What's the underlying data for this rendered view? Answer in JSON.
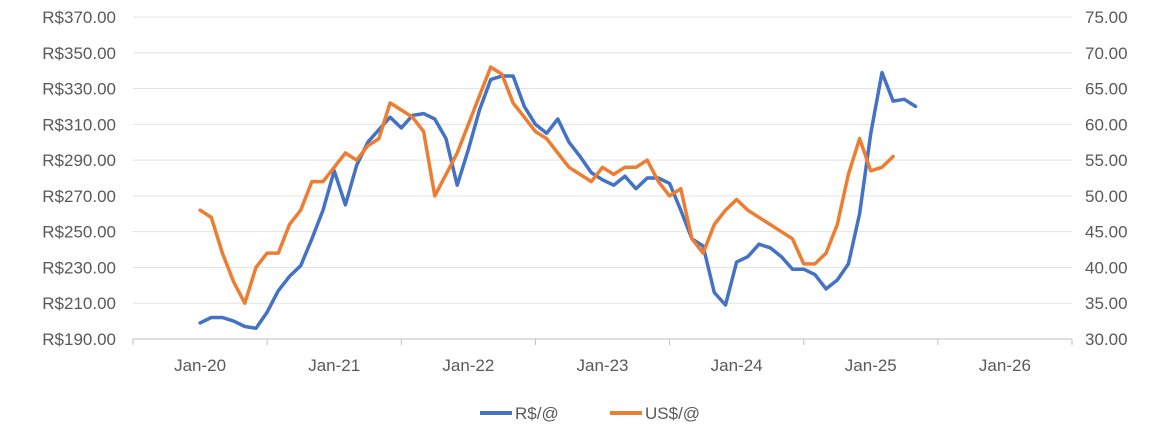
{
  "chart_data": {
    "type": "line",
    "title": "",
    "xlabel": "",
    "ylabel": "",
    "grid": true,
    "legend_position": "bottom",
    "x_range": [
      "2019-07",
      "2026-07"
    ],
    "x_ticks": [
      {
        "date": "2020-01",
        "label": "Jan-20"
      },
      {
        "date": "2021-01",
        "label": "Jan-21"
      },
      {
        "date": "2022-01",
        "label": "Jan-22"
      },
      {
        "date": "2023-01",
        "label": "Jan-23"
      },
      {
        "date": "2024-01",
        "label": "Jan-24"
      },
      {
        "date": "2025-01",
        "label": "Jan-25"
      },
      {
        "date": "2026-01",
        "label": "Jan-26"
      }
    ],
    "y_left": {
      "range": [
        190,
        370
      ],
      "ticks": [
        {
          "value": 190,
          "label": "R$190.00"
        },
        {
          "value": 210,
          "label": "R$210.00"
        },
        {
          "value": 230,
          "label": "R$230.00"
        },
        {
          "value": 250,
          "label": "R$250.00"
        },
        {
          "value": 270,
          "label": "R$270.00"
        },
        {
          "value": 290,
          "label": "R$290.00"
        },
        {
          "value": 310,
          "label": "R$310.00"
        },
        {
          "value": 330,
          "label": "R$330.00"
        },
        {
          "value": 350,
          "label": "R$350.00"
        },
        {
          "value": 370,
          "label": "R$370.00"
        }
      ]
    },
    "y_right": {
      "range": [
        30,
        75
      ],
      "ticks": [
        {
          "value": 30,
          "label": "30.00"
        },
        {
          "value": 35,
          "label": "35.00"
        },
        {
          "value": 40,
          "label": "40.00"
        },
        {
          "value": 45,
          "label": "45.00"
        },
        {
          "value": 50,
          "label": "50.00"
        },
        {
          "value": 55,
          "label": "55.00"
        },
        {
          "value": 60,
          "label": "60.00"
        },
        {
          "value": 65,
          "label": "65.00"
        },
        {
          "value": 70,
          "label": "70.00"
        },
        {
          "value": 75,
          "label": "75.00"
        }
      ]
    },
    "series": [
      {
        "name": "R$/@",
        "axis": "left",
        "color": "#4472C4",
        "points": [
          [
            "2020-01",
            199
          ],
          [
            "2020-02",
            202
          ],
          [
            "2020-03",
            202
          ],
          [
            "2020-04",
            200
          ],
          [
            "2020-05",
            197
          ],
          [
            "2020-06",
            196
          ],
          [
            "2020-07",
            205
          ],
          [
            "2020-08",
            217
          ],
          [
            "2020-09",
            225
          ],
          [
            "2020-10",
            231
          ],
          [
            "2020-11",
            246
          ],
          [
            "2020-12",
            262
          ],
          [
            "2021-01",
            284
          ],
          [
            "2021-02",
            265
          ],
          [
            "2021-03",
            287
          ],
          [
            "2021-04",
            300
          ],
          [
            "2021-05",
            307
          ],
          [
            "2021-06",
            314
          ],
          [
            "2021-07",
            308
          ],
          [
            "2021-08",
            315
          ],
          [
            "2021-09",
            316
          ],
          [
            "2021-10",
            313
          ],
          [
            "2021-11",
            302
          ],
          [
            "2021-12",
            276
          ],
          [
            "2022-01",
            296
          ],
          [
            "2022-02",
            318
          ],
          [
            "2022-03",
            335
          ],
          [
            "2022-04",
            337
          ],
          [
            "2022-05",
            337
          ],
          [
            "2022-06",
            320
          ],
          [
            "2022-07",
            310
          ],
          [
            "2022-08",
            305
          ],
          [
            "2022-09",
            313
          ],
          [
            "2022-10",
            300
          ],
          [
            "2022-11",
            292
          ],
          [
            "2022-12",
            283
          ],
          [
            "2023-01",
            279
          ],
          [
            "2023-02",
            276
          ],
          [
            "2023-03",
            281
          ],
          [
            "2023-04",
            274
          ],
          [
            "2023-05",
            280
          ],
          [
            "2023-06",
            280
          ],
          [
            "2023-07",
            277
          ],
          [
            "2023-08",
            262
          ],
          [
            "2023-09",
            246
          ],
          [
            "2023-10",
            242
          ],
          [
            "2023-11",
            216
          ],
          [
            "2023-12",
            209
          ],
          [
            "2024-01",
            233
          ],
          [
            "2024-02",
            236
          ],
          [
            "2024-03",
            243
          ],
          [
            "2024-04",
            241
          ],
          [
            "2024-05",
            236
          ],
          [
            "2024-06",
            229
          ],
          [
            "2024-07",
            229
          ],
          [
            "2024-08",
            226
          ],
          [
            "2024-09",
            218
          ],
          [
            "2024-10",
            223
          ],
          [
            "2024-11",
            232
          ],
          [
            "2024-12",
            260
          ],
          [
            "2025-01",
            305
          ],
          [
            "2025-02",
            339
          ],
          [
            "2025-03",
            323
          ],
          [
            "2025-04",
            324
          ],
          [
            "2025-05",
            320
          ]
        ]
      },
      {
        "name": "US$/@",
        "axis": "right",
        "color": "#ED7D31",
        "points": [
          [
            "2020-01",
            48
          ],
          [
            "2020-02",
            47
          ],
          [
            "2020-03",
            42
          ],
          [
            "2020-04",
            38
          ],
          [
            "2020-05",
            35
          ],
          [
            "2020-06",
            40
          ],
          [
            "2020-07",
            42
          ],
          [
            "2020-08",
            42
          ],
          [
            "2020-09",
            46
          ],
          [
            "2020-10",
            48
          ],
          [
            "2020-11",
            52
          ],
          [
            "2020-12",
            52
          ],
          [
            "2021-01",
            54
          ],
          [
            "2021-02",
            56
          ],
          [
            "2021-03",
            55
          ],
          [
            "2021-04",
            57
          ],
          [
            "2021-05",
            58
          ],
          [
            "2021-06",
            63
          ],
          [
            "2021-07",
            62
          ],
          [
            "2021-08",
            61
          ],
          [
            "2021-09",
            59
          ],
          [
            "2021-10",
            50
          ],
          [
            "2021-11",
            53
          ],
          [
            "2021-12",
            56
          ],
          [
            "2022-01",
            60
          ],
          [
            "2022-02",
            64
          ],
          [
            "2022-03",
            68
          ],
          [
            "2022-04",
            67
          ],
          [
            "2022-05",
            63
          ],
          [
            "2022-06",
            61
          ],
          [
            "2022-07",
            59
          ],
          [
            "2022-08",
            58
          ],
          [
            "2022-09",
            56
          ],
          [
            "2022-10",
            54
          ],
          [
            "2022-11",
            53
          ],
          [
            "2022-12",
            52
          ],
          [
            "2023-01",
            54
          ],
          [
            "2023-02",
            53
          ],
          [
            "2023-03",
            54
          ],
          [
            "2023-04",
            54
          ],
          [
            "2023-05",
            55
          ],
          [
            "2023-06",
            52
          ],
          [
            "2023-07",
            50
          ],
          [
            "2023-08",
            51
          ],
          [
            "2023-09",
            44
          ],
          [
            "2023-10",
            42
          ],
          [
            "2023-11",
            46
          ],
          [
            "2023-12",
            48
          ],
          [
            "2024-01",
            49.5
          ],
          [
            "2024-02",
            48
          ],
          [
            "2024-03",
            47
          ],
          [
            "2024-04",
            46
          ],
          [
            "2024-05",
            45
          ],
          [
            "2024-06",
            44
          ],
          [
            "2024-07",
            40.5
          ],
          [
            "2024-08",
            40.5
          ],
          [
            "2024-09",
            42
          ],
          [
            "2024-10",
            46
          ],
          [
            "2024-11",
            53
          ],
          [
            "2024-12",
            58
          ],
          [
            "2025-01",
            53.5
          ],
          [
            "2025-02",
            54
          ],
          [
            "2025-03",
            55.5
          ]
        ]
      }
    ]
  }
}
